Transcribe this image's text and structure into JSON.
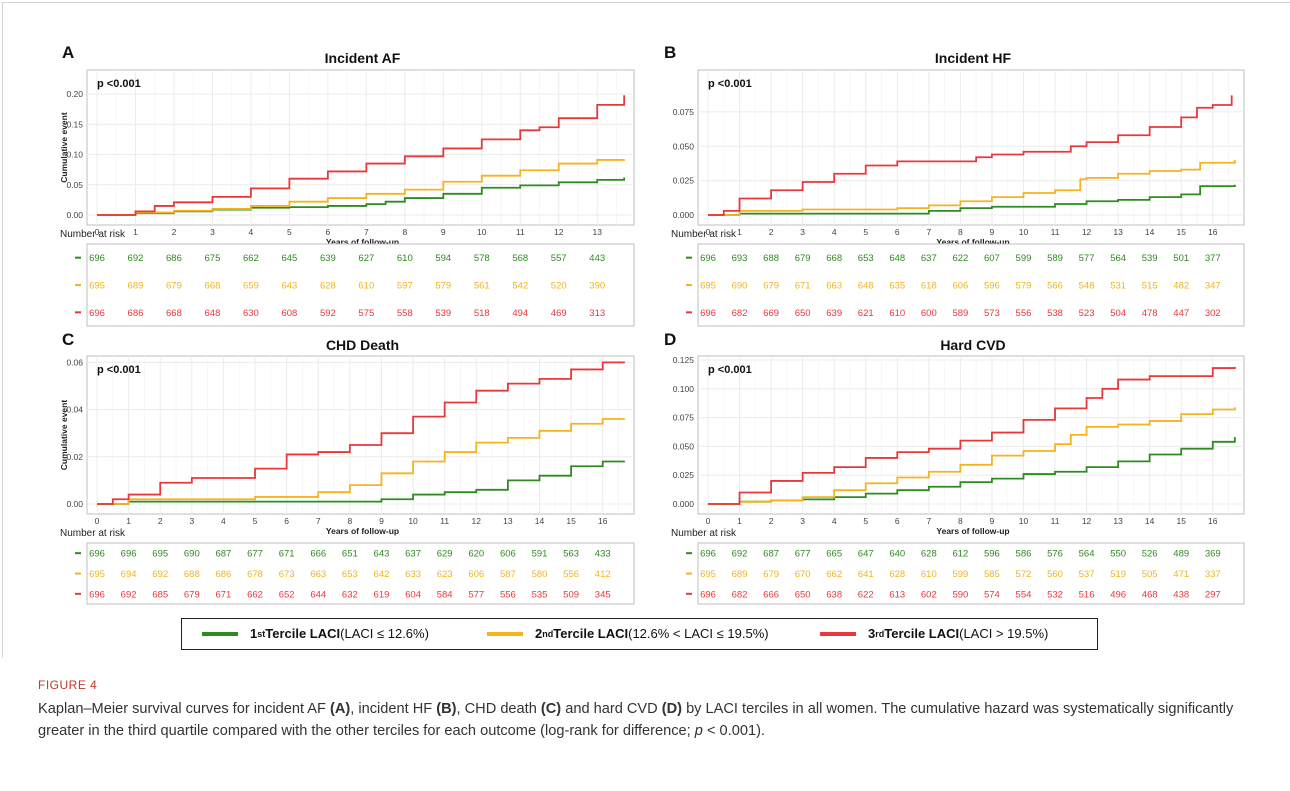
{
  "figure": {
    "label": "FIGURE 4",
    "caption": {
      "p1": "Kaplan–Meier survival curves for incident AF ",
      "b1": "(A)",
      "p2": ", incident HF ",
      "b2": "(B)",
      "p3": ", CHD death ",
      "b3": "(C)",
      "p4": " and hard CVD ",
      "b4": "(D)",
      "p5": " by LACI terciles in all women. The cumulative hazard was systematically significantly greater in the third quartile compared with the other terciles for each outcome (log-rank for difference; ",
      "p_italic": "p",
      "p6": " < 0.001)."
    }
  },
  "colors": {
    "tercile1": "#2e8b1f",
    "tercile2": "#f5b31e",
    "tercile3": "#e8383c",
    "grid": "#ececec",
    "axis_box": "#bfbfbf"
  },
  "legend": {
    "items": [
      {
        "ordinal": "1",
        "sup": "st",
        "name": " Tercile LACI",
        "range": " (LACI ≤ 12.6%)",
        "color_key": "tercile1"
      },
      {
        "ordinal": "2",
        "sup": "nd",
        "name": " Tercile LACI",
        "range": " (12.6% < LACI ≤ 19.5%)",
        "color_key": "tercile2"
      },
      {
        "ordinal": "3",
        "sup": "rd",
        "name": " Tercile LACI",
        "range": " (LACI > 19.5%)",
        "color_key": "tercile3"
      }
    ]
  },
  "chart_data": [
    {
      "type": "line",
      "panel_letter": "A",
      "title": "Incident AF",
      "pvalue": "p <0.001",
      "xlabel": "Years of follow-up",
      "ylabel": "Cumulative event",
      "xlim": [
        0,
        13.8
      ],
      "ylim": [
        0,
        0.2
      ],
      "xticks": [
        0,
        1,
        2,
        3,
        4,
        5,
        6,
        7,
        8,
        9,
        10,
        11,
        12,
        13
      ],
      "yticks": [
        0.0,
        0.05,
        0.1,
        0.15,
        0.2
      ],
      "ytick_labels": [
        "0.00",
        "0.05",
        "0.10",
        "0.15",
        "0.20"
      ],
      "grid": true,
      "series": [
        {
          "color_key": "tercile1",
          "x": [
            0,
            1,
            2,
            3,
            4,
            5,
            6,
            7,
            7.5,
            8,
            9,
            10,
            11,
            12,
            13,
            13.7
          ],
          "y": [
            0,
            0.003,
            0.006,
            0.009,
            0.012,
            0.013,
            0.015,
            0.018,
            0.022,
            0.028,
            0.035,
            0.045,
            0.049,
            0.054,
            0.058,
            0.062
          ]
        },
        {
          "color_key": "tercile2",
          "x": [
            0,
            1,
            2,
            3,
            4,
            5,
            6,
            7,
            8,
            9,
            10,
            11,
            12,
            13,
            13.7
          ],
          "y": [
            0,
            0.004,
            0.007,
            0.01,
            0.015,
            0.022,
            0.028,
            0.035,
            0.042,
            0.055,
            0.065,
            0.074,
            0.085,
            0.091,
            0.092
          ]
        },
        {
          "color_key": "tercile3",
          "x": [
            0,
            1,
            1.5,
            2,
            3,
            4,
            5,
            6,
            7,
            8,
            9,
            10,
            11,
            11.5,
            12,
            13,
            13.7
          ],
          "y": [
            0,
            0.006,
            0.015,
            0.021,
            0.03,
            0.044,
            0.06,
            0.072,
            0.085,
            0.097,
            0.11,
            0.125,
            0.14,
            0.145,
            0.16,
            0.182,
            0.198
          ]
        }
      ],
      "risk_table": {
        "header": "Number at risk",
        "rows": [
          {
            "color_key": "tercile1",
            "values": [
              "696",
              "692",
              "686",
              "675",
              "662",
              "645",
              "639",
              "627",
              "610",
              "594",
              "578",
              "568",
              "557",
              "443"
            ]
          },
          {
            "color_key": "tercile2",
            "values": [
              "695",
              "689",
              "679",
              "668",
              "659",
              "643",
              "628",
              "610",
              "597",
              "579",
              "561",
              "542",
              "520",
              "390"
            ]
          },
          {
            "color_key": "tercile3",
            "values": [
              "696",
              "686",
              "668",
              "648",
              "630",
              "608",
              "592",
              "575",
              "558",
              "539",
              "518",
              "494",
              "469",
              "313"
            ]
          }
        ]
      }
    },
    {
      "type": "line",
      "panel_letter": "B",
      "title": "Incident HF",
      "pvalue": "p <0.001",
      "xlabel": "Years of follow-up",
      "ylabel": "",
      "xlim": [
        0,
        16.8
      ],
      "ylim": [
        0,
        0.088
      ],
      "xticks": [
        0,
        1,
        2,
        3,
        4,
        5,
        6,
        7,
        8,
        9,
        10,
        11,
        12,
        13,
        14,
        15,
        16
      ],
      "yticks": [
        0.0,
        0.025,
        0.05,
        0.075
      ],
      "ytick_labels": [
        "0.000",
        "0.025",
        "0.050",
        "0.075"
      ],
      "grid": true,
      "series": [
        {
          "color_key": "tercile1",
          "x": [
            0,
            1,
            2,
            3,
            4,
            5,
            6,
            7,
            8,
            9,
            10,
            11,
            12,
            13,
            14,
            15,
            15.6,
            16.7
          ],
          "y": [
            0,
            0.001,
            0.001,
            0.001,
            0.001,
            0.001,
            0.001,
            0.003,
            0.005,
            0.006,
            0.006,
            0.008,
            0.01,
            0.011,
            0.013,
            0.015,
            0.021,
            0.022
          ]
        },
        {
          "color_key": "tercile2",
          "x": [
            0,
            1,
            2,
            3,
            4,
            5,
            6,
            7,
            8,
            9,
            10,
            11,
            11.8,
            12,
            13,
            14,
            15,
            15.6,
            16.7
          ],
          "y": [
            0,
            0.003,
            0.003,
            0.004,
            0.004,
            0.004,
            0.005,
            0.007,
            0.01,
            0.013,
            0.016,
            0.018,
            0.026,
            0.027,
            0.03,
            0.032,
            0.033,
            0.038,
            0.04
          ]
        },
        {
          "color_key": "tercile3",
          "x": [
            0,
            0.5,
            1,
            2,
            3,
            4,
            5,
            6,
            7,
            8,
            8.5,
            9,
            10,
            11,
            11.5,
            12,
            13,
            14,
            15,
            15.5,
            16,
            16.6
          ],
          "y": [
            0,
            0.003,
            0.012,
            0.018,
            0.024,
            0.03,
            0.036,
            0.039,
            0.039,
            0.039,
            0.042,
            0.044,
            0.046,
            0.046,
            0.05,
            0.053,
            0.058,
            0.064,
            0.071,
            0.078,
            0.08,
            0.087
          ]
        }
      ],
      "risk_table": {
        "header": "Number at risk",
        "rows": [
          {
            "color_key": "tercile1",
            "values": [
              "696",
              "693",
              "688",
              "679",
              "668",
              "653",
              "648",
              "637",
              "622",
              "607",
              "599",
              "589",
              "577",
              "564",
              "539",
              "501",
              "377"
            ]
          },
          {
            "color_key": "tercile2",
            "values": [
              "695",
              "690",
              "679",
              "671",
              "663",
              "648",
              "635",
              "618",
              "606",
              "596",
              "579",
              "566",
              "548",
              "531",
              "515",
              "482",
              "347"
            ]
          },
          {
            "color_key": "tercile3",
            "values": [
              "696",
              "682",
              "669",
              "650",
              "639",
              "621",
              "610",
              "600",
              "589",
              "573",
              "556",
              "538",
              "523",
              "504",
              "478",
              "447",
              "302"
            ]
          }
        ]
      }
    },
    {
      "type": "line",
      "panel_letter": "C",
      "title": "CHD Death",
      "pvalue": "p <0.001",
      "xlabel": "Years of follow-up",
      "ylabel": "Cumulative event",
      "xlim": [
        0,
        16.8
      ],
      "ylim": [
        0,
        0.061
      ],
      "xticks": [
        0,
        1,
        2,
        3,
        4,
        5,
        6,
        7,
        8,
        9,
        10,
        11,
        12,
        13,
        14,
        15,
        16
      ],
      "yticks": [
        0.0,
        0.02,
        0.04,
        0.06
      ],
      "ytick_labels": [
        "0.00",
        "0.02",
        "0.04",
        "0.06"
      ],
      "grid": true,
      "series": [
        {
          "color_key": "tercile1",
          "x": [
            0,
            1,
            2,
            3,
            4,
            5,
            6,
            7,
            8,
            9,
            10,
            11,
            12,
            13,
            14,
            15,
            16,
            16.7
          ],
          "y": [
            0,
            0.001,
            0.001,
            0.001,
            0.001,
            0.001,
            0.001,
            0.001,
            0.001,
            0.002,
            0.004,
            0.005,
            0.006,
            0.01,
            0.012,
            0.016,
            0.018,
            0.018
          ]
        },
        {
          "color_key": "tercile2",
          "x": [
            0,
            1,
            2,
            3,
            4,
            5,
            6,
            7,
            8,
            9,
            10,
            11,
            12,
            13,
            14,
            15,
            16,
            16.7
          ],
          "y": [
            0,
            0.002,
            0.002,
            0.002,
            0.002,
            0.003,
            0.003,
            0.005,
            0.008,
            0.013,
            0.018,
            0.022,
            0.026,
            0.028,
            0.031,
            0.034,
            0.036,
            0.036
          ]
        },
        {
          "color_key": "tercile3",
          "x": [
            0,
            0.5,
            1,
            2,
            3,
            4,
            5,
            6,
            7,
            8,
            9,
            10,
            11,
            12,
            13,
            14,
            15,
            16,
            16.7
          ],
          "y": [
            0,
            0.002,
            0.004,
            0.009,
            0.011,
            0.011,
            0.015,
            0.021,
            0.022,
            0.025,
            0.03,
            0.037,
            0.043,
            0.048,
            0.051,
            0.053,
            0.057,
            0.06,
            0.06
          ]
        }
      ],
      "risk_table": {
        "header": "Number at risk",
        "rows": [
          {
            "color_key": "tercile1",
            "values": [
              "696",
              "696",
              "695",
              "690",
              "687",
              "677",
              "671",
              "666",
              "651",
              "643",
              "637",
              "629",
              "620",
              "606",
              "591",
              "563",
              "433"
            ]
          },
          {
            "color_key": "tercile2",
            "values": [
              "695",
              "694",
              "692",
              "688",
              "686",
              "678",
              "673",
              "663",
              "653",
              "642",
              "633",
              "623",
              "606",
              "587",
              "580",
              "556",
              "412"
            ]
          },
          {
            "color_key": "tercile3",
            "values": [
              "696",
              "692",
              "685",
              "679",
              "671",
              "662",
              "652",
              "644",
              "632",
              "619",
              "604",
              "584",
              "577",
              "556",
              "535",
              "509",
              "345"
            ]
          }
        ]
      }
    },
    {
      "type": "line",
      "panel_letter": "D",
      "title": "Hard CVD",
      "pvalue": "p <0.001",
      "xlabel": "Years of follow-up",
      "ylabel": "",
      "xlim": [
        0,
        16.8
      ],
      "ylim": [
        0,
        0.125
      ],
      "xticks": [
        0,
        1,
        2,
        3,
        4,
        5,
        6,
        7,
        8,
        9,
        10,
        11,
        12,
        13,
        14,
        15,
        16
      ],
      "yticks": [
        0.0,
        0.025,
        0.05,
        0.075,
        0.1,
        0.125
      ],
      "ytick_labels": [
        "0.000",
        "0.025",
        "0.050",
        "0.075",
        "0.100",
        "0.125"
      ],
      "grid": true,
      "series": [
        {
          "color_key": "tercile1",
          "x": [
            0,
            1,
            2,
            3,
            4,
            5,
            6,
            7,
            8,
            9,
            10,
            11,
            12,
            13,
            14,
            15,
            16,
            16.7
          ],
          "y": [
            0,
            0.002,
            0.003,
            0.004,
            0.006,
            0.009,
            0.012,
            0.015,
            0.019,
            0.022,
            0.026,
            0.028,
            0.032,
            0.037,
            0.043,
            0.048,
            0.054,
            0.058
          ]
        },
        {
          "color_key": "tercile2",
          "x": [
            0,
            1,
            2,
            3,
            4,
            5,
            6,
            7,
            8,
            9,
            10,
            11,
            11.5,
            12,
            13,
            14,
            15,
            16,
            16.7
          ],
          "y": [
            0,
            0.002,
            0.003,
            0.006,
            0.012,
            0.018,
            0.023,
            0.028,
            0.034,
            0.042,
            0.046,
            0.052,
            0.06,
            0.067,
            0.069,
            0.072,
            0.078,
            0.082,
            0.084
          ]
        },
        {
          "color_key": "tercile3",
          "x": [
            0,
            1,
            2,
            3,
            4,
            5,
            6,
            7,
            8,
            9,
            10,
            11,
            12,
            12.5,
            13,
            14,
            15,
            16,
            16.7
          ],
          "y": [
            0,
            0.01,
            0.02,
            0.027,
            0.032,
            0.04,
            0.045,
            0.048,
            0.055,
            0.062,
            0.073,
            0.083,
            0.092,
            0.1,
            0.108,
            0.111,
            0.111,
            0.118,
            0.119
          ]
        }
      ],
      "risk_table": {
        "header": "Number at risk",
        "rows": [
          {
            "color_key": "tercile1",
            "values": [
              "696",
              "692",
              "687",
              "677",
              "665",
              "647",
              "640",
              "628",
              "612",
              "596",
              "586",
              "576",
              "564",
              "550",
              "526",
              "489",
              "369"
            ]
          },
          {
            "color_key": "tercile2",
            "values": [
              "695",
              "689",
              "679",
              "670",
              "662",
              "641",
              "628",
              "610",
              "599",
              "585",
              "572",
              "560",
              "537",
              "519",
              "505",
              "471",
              "337"
            ]
          },
          {
            "color_key": "tercile3",
            "values": [
              "696",
              "682",
              "666",
              "650",
              "638",
              "622",
              "613",
              "602",
              "590",
              "574",
              "554",
              "532",
              "516",
              "496",
              "468",
              "438",
              "297"
            ]
          }
        ]
      }
    }
  ]
}
